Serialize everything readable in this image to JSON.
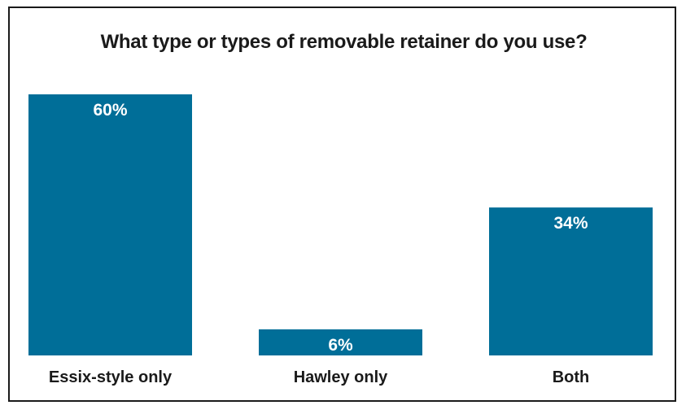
{
  "chart_data": {
    "type": "bar",
    "title": "What type or types of removable retainer do you use?",
    "categories": [
      "Essix-style only",
      "Hawley only",
      "Both"
    ],
    "values": [
      60,
      6,
      34
    ],
    "value_labels": [
      "60%",
      "6%",
      "34%"
    ],
    "ylim": [
      0,
      60
    ],
    "grid": false,
    "bar_color": "#006e98"
  }
}
